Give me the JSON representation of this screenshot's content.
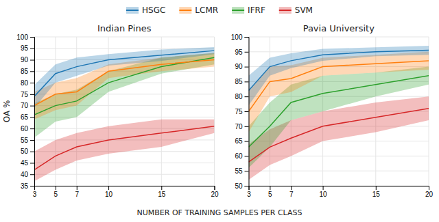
{
  "chart_data": [
    {
      "type": "line",
      "title": "Indian Pines",
      "xlabel": "NUMBER OF TRAINING SAMPLES PER CLASS",
      "ylabel": "OA %",
      "x": [
        3,
        5,
        7,
        10,
        15,
        20
      ],
      "series": [
        {
          "name": "HSGC",
          "values": [
            74,
            84,
            87,
            90,
            92,
            94
          ],
          "upper": [
            79,
            88,
            91,
            92.5,
            94.5,
            95.5
          ],
          "lower": [
            69,
            80,
            83,
            87.5,
            89.5,
            92.5
          ]
        },
        {
          "name": "LCMR",
          "values": [
            70,
            75,
            76,
            85,
            88,
            90
          ],
          "upper": [
            76,
            80,
            82,
            88,
            91,
            93
          ],
          "lower": [
            64,
            68,
            70,
            82,
            85,
            87
          ]
        },
        {
          "name": "IFRF",
          "values": [
            66,
            70,
            72,
            80,
            87,
            91
          ],
          "upper": [
            71,
            75,
            77,
            85,
            91,
            93
          ],
          "lower": [
            56,
            63,
            65,
            76,
            84,
            88
          ]
        },
        {
          "name": "SVM",
          "values": [
            42,
            48,
            52,
            55,
            58,
            61
          ],
          "upper": [
            50,
            55,
            58,
            61,
            64,
            64
          ],
          "lower": [
            37,
            42,
            46,
            49,
            52,
            58
          ]
        }
      ],
      "xlim": [
        3,
        20
      ],
      "xticks": [
        3,
        5,
        7,
        10,
        15,
        20
      ],
      "ylim": [
        35,
        100
      ],
      "yticks": [
        35,
        40,
        45,
        50,
        55,
        60,
        65,
        70,
        75,
        80,
        85,
        90,
        95,
        100
      ],
      "grid": true
    },
    {
      "type": "line",
      "title": "Pavia University",
      "x": [
        3,
        5,
        7,
        10,
        15,
        20
      ],
      "series": [
        {
          "name": "HSGC",
          "values": [
            82,
            90,
            92,
            94,
            95,
            95.5
          ],
          "upper": [
            87,
            93,
            94.5,
            96,
            96.5,
            97
          ],
          "lower": [
            77,
            87,
            89.5,
            92,
            93.5,
            94
          ]
        },
        {
          "name": "LCMR",
          "values": [
            75,
            85,
            86,
            90,
            91,
            92
          ],
          "upper": [
            82,
            90,
            90.5,
            93,
            94,
            95
          ],
          "lower": [
            68,
            80,
            81.5,
            87,
            88,
            89
          ]
        },
        {
          "name": "IFRF",
          "values": [
            63,
            70,
            78,
            81,
            84,
            87
          ],
          "upper": [
            70,
            78,
            84,
            87,
            88,
            90
          ],
          "lower": [
            56,
            63,
            72,
            75,
            80,
            84
          ]
        },
        {
          "name": "SVM",
          "values": [
            58,
            63,
            66,
            70,
            73,
            76
          ],
          "upper": [
            64,
            69,
            72,
            75,
            78,
            80
          ],
          "lower": [
            52,
            57,
            60,
            65,
            68,
            72
          ]
        }
      ],
      "xlim": [
        3,
        20
      ],
      "xticks": [
        3,
        5,
        7,
        10,
        15,
        20
      ],
      "ylim": [
        50,
        100
      ],
      "yticks": [
        50,
        55,
        60,
        65,
        70,
        75,
        80,
        85,
        90,
        95,
        100
      ],
      "grid": true
    }
  ]
}
